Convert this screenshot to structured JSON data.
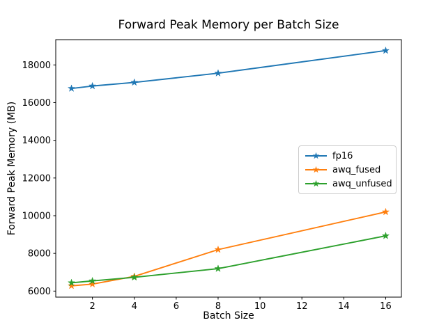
{
  "figure": {
    "background": "#ffffff",
    "axis_color": "#000000"
  },
  "chart_data": {
    "type": "line",
    "title": "Forward Peak Memory per Batch Size",
    "xlabel": "Batch Size",
    "ylabel": "Forward Peak Memory (MB)",
    "x": [
      1,
      2,
      4,
      8,
      16
    ],
    "series": [
      {
        "name": "fp16",
        "color": "#1f77b4",
        "marker": "star",
        "values": [
          16750,
          16880,
          17070,
          17560,
          18760
        ]
      },
      {
        "name": "awq_fused",
        "color": "#ff7f0e",
        "marker": "star",
        "values": [
          6280,
          6370,
          6780,
          8200,
          10200
        ]
      },
      {
        "name": "awq_unfused",
        "color": "#2ca02c",
        "marker": "star",
        "values": [
          6440,
          6540,
          6730,
          7190,
          8930
        ]
      }
    ],
    "xlim": [
      0.25,
      16.75
    ],
    "ylim": [
      5680,
      19340
    ],
    "xticks": [
      2,
      4,
      6,
      8,
      10,
      12,
      14,
      16
    ],
    "yticks": [
      6000,
      8000,
      10000,
      12000,
      14000,
      16000,
      18000
    ],
    "grid": false,
    "legend_position": "center-right"
  }
}
